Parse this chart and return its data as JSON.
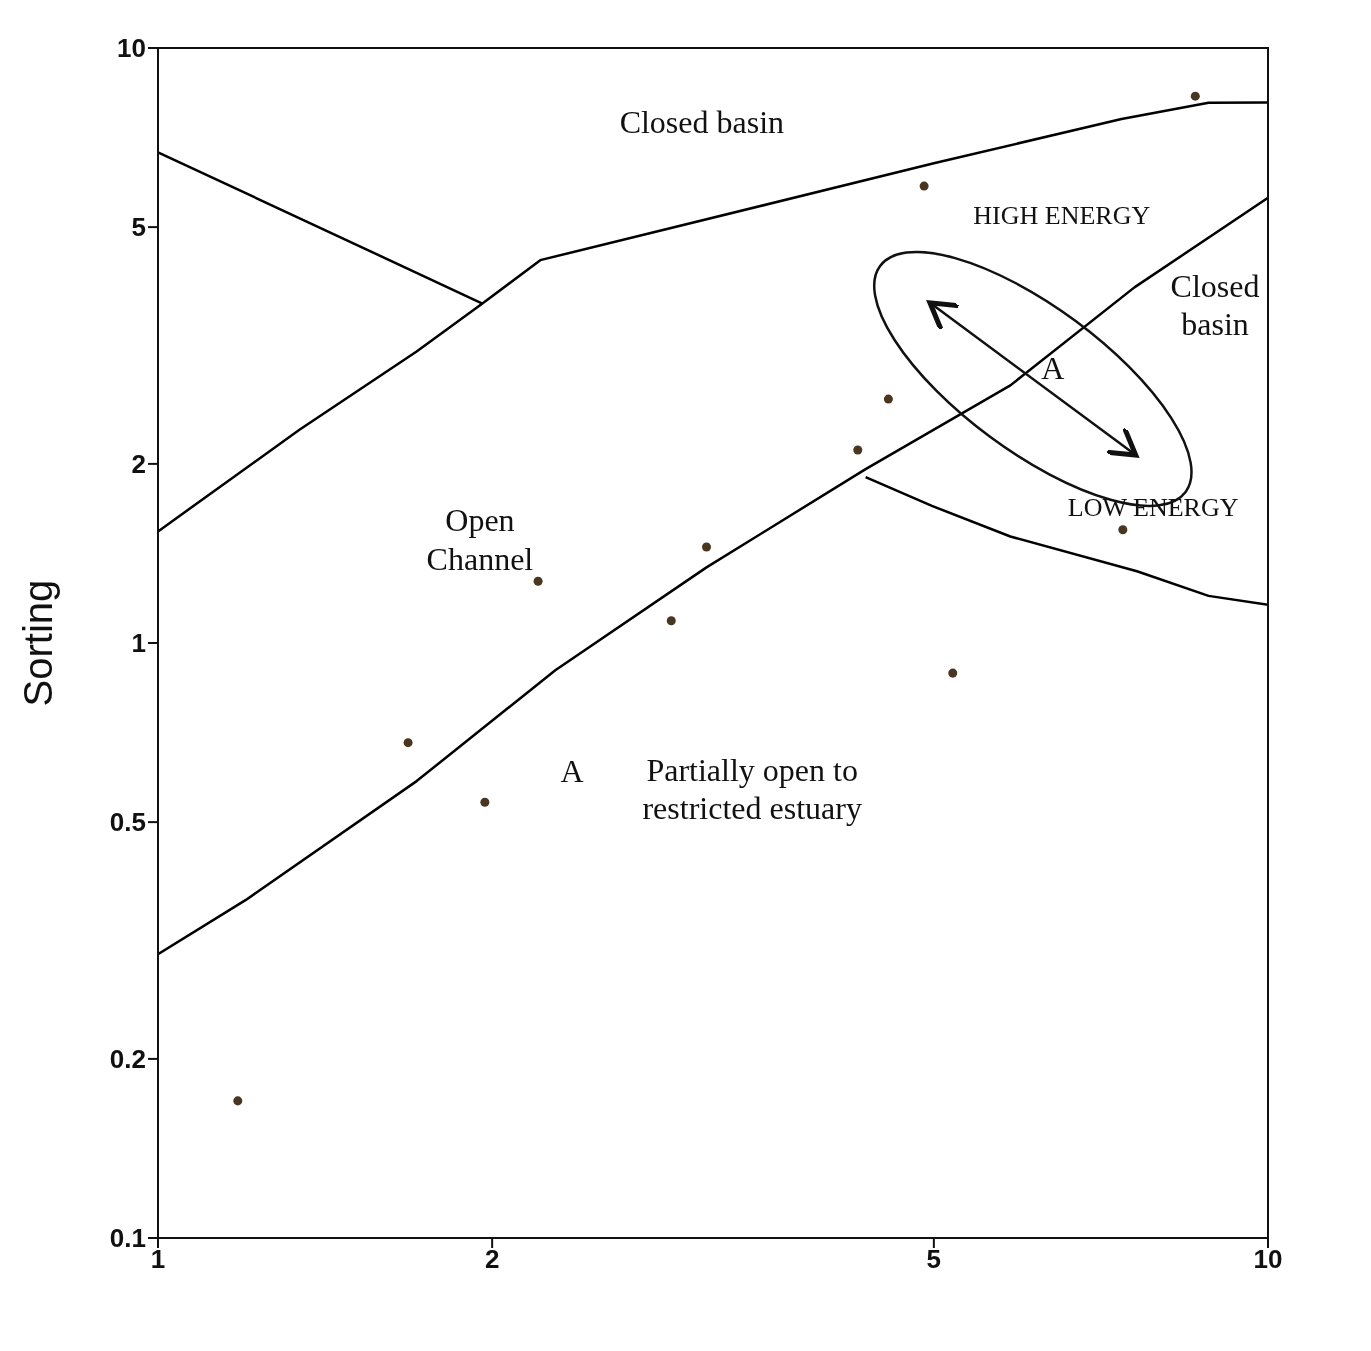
{
  "chart_data": {
    "type": "scatter",
    "ylabel": "Sorting",
    "log": "xy",
    "xlim": [
      1,
      10
    ],
    "ylim": [
      0.1,
      10
    ],
    "xticks": [
      1,
      2,
      5,
      10
    ],
    "yticks": [
      0.1,
      0.2,
      0.5,
      1,
      2,
      5,
      10
    ],
    "grid": false,
    "series": [
      {
        "marker": "circle",
        "color": "#4a3520",
        "x": [
          1.18,
          1.68,
          1.97,
          2.2,
          2.9,
          3.12,
          4.27,
          4.55,
          4.9,
          5.2,
          7.4,
          8.6
        ],
        "values": [
          0.17,
          0.68,
          0.54,
          1.27,
          1.09,
          1.45,
          2.11,
          2.57,
          5.86,
          0.89,
          1.55,
          8.3
        ]
      },
      {
        "type": "line",
        "marker": "none",
        "color": "#000000",
        "x": [
          1,
          1.96
        ],
        "values": [
          6.68,
          3.72
        ]
      },
      {
        "type": "line",
        "marker": "none",
        "color": "#000000",
        "x": [
          1,
          1.34,
          1.71,
          1.96,
          2.21,
          5,
          7.38,
          8.84,
          10
        ],
        "values": [
          1.54,
          2.28,
          3.09,
          3.72,
          4.4,
          6.4,
          7.6,
          8.09,
          8.1
        ]
      },
      {
        "type": "line",
        "marker": "none",
        "color": "#000000",
        "x": [
          1,
          1.2,
          1.71,
          2.28,
          3.12,
          4.34,
          5.86,
          7.58,
          10
        ],
        "values": [
          0.3,
          0.37,
          0.586,
          0.9,
          1.34,
          1.96,
          2.71,
          3.96,
          5.6
        ]
      },
      {
        "type": "line",
        "marker": "none",
        "color": "#000000",
        "x": [
          4.34,
          4.98,
          5.86,
          7.62,
          8.84,
          10
        ],
        "values": [
          1.9,
          1.7,
          1.51,
          1.32,
          1.2,
          1.16
        ]
      }
    ],
    "annotations": [
      "Closed basin",
      "HIGH ENERGY",
      "Closed\nbasin",
      "A",
      "LOW ENERGY",
      "Open\nChannel",
      "A",
      "Partially open to\nrestricted estuary"
    ]
  }
}
